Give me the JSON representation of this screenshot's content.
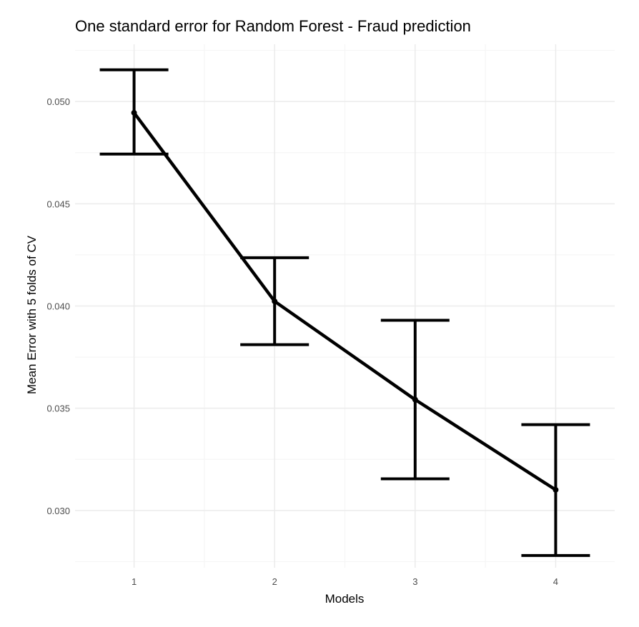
{
  "chart_data": {
    "type": "line",
    "title": "One standard error for Random Forest - Fraud prediction",
    "xlabel": "Models",
    "ylabel": "Mean Error with 5 folds of CV",
    "x": [
      1,
      2,
      3,
      4
    ],
    "x_tick_labels": [
      "1",
      "2",
      "3",
      "4"
    ],
    "xlim": [
      0.58,
      4.42
    ],
    "y_ticks": [
      0.03,
      0.035,
      0.04,
      0.045,
      0.05
    ],
    "y_tick_labels": [
      "0.030",
      "0.035",
      "0.040",
      "0.045",
      "0.050"
    ],
    "ylim": [
      0.0272,
      0.0528
    ],
    "grid": true,
    "series": [
      {
        "values": [
          0.04945,
          0.04023,
          0.03542,
          0.03101
        ],
        "error_lower": [
          0.04743,
          0.03811,
          0.03155,
          0.0278
        ],
        "error_upper": [
          0.05155,
          0.04236,
          0.0393,
          0.0342
        ]
      }
    ],
    "colors": {
      "line": "#000000",
      "grid": "#ebebeb",
      "text": "#4d4d4d"
    }
  }
}
